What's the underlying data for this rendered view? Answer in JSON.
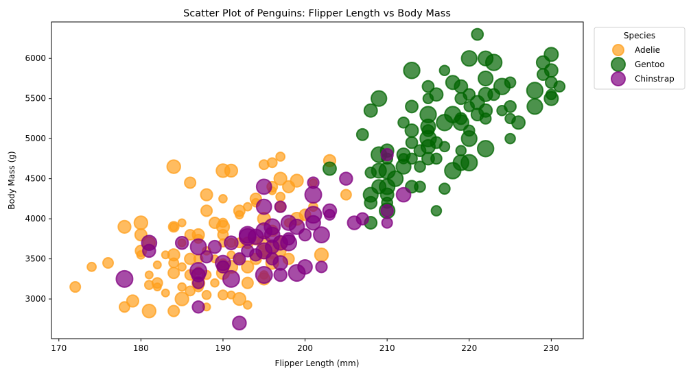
{
  "chart_data": {
    "type": "scatter",
    "title": "Scatter Plot of Penguins: Flipper Length vs Body Mass",
    "xlabel": "Flipper Length (mm)",
    "ylabel": "Body Mass (g)",
    "xlim": [
      169.1,
      233.9
    ],
    "ylim": [
      2505,
      6455
    ],
    "x_ticks": [
      170,
      180,
      190,
      200,
      210,
      220,
      230
    ],
    "y_ticks": [
      3000,
      3500,
      4000,
      4500,
      5000,
      5500,
      6000
    ],
    "grid": false,
    "legend": {
      "title": "Species",
      "placement": "outside-top-right"
    },
    "series": [
      {
        "name": "Adelie",
        "color": "#ff9f1c",
        "points": [
          [
            172,
            3150
          ],
          [
            174,
            3400
          ],
          [
            176,
            3450
          ],
          [
            178,
            3900
          ],
          [
            178,
            2900
          ],
          [
            179,
            2975
          ],
          [
            180,
            3950
          ],
          [
            180,
            3800
          ],
          [
            180,
            3600
          ],
          [
            180,
            3550
          ],
          [
            181,
            3700
          ],
          [
            181,
            3300
          ],
          [
            181,
            3175
          ],
          [
            181,
            2850
          ],
          [
            182,
            3425
          ],
          [
            182,
            3200
          ],
          [
            182,
            3150
          ],
          [
            183,
            3550
          ],
          [
            183,
            3075
          ],
          [
            184,
            4650
          ],
          [
            184,
            3900
          ],
          [
            184,
            3900
          ],
          [
            184,
            3550
          ],
          [
            184,
            3450
          ],
          [
            184,
            3325
          ],
          [
            184,
            2850
          ],
          [
            185,
            3950
          ],
          [
            185,
            3700
          ],
          [
            185,
            3400
          ],
          [
            185,
            3150
          ],
          [
            185,
            3000
          ],
          [
            186,
            4450
          ],
          [
            186,
            3800
          ],
          [
            186,
            3500
          ],
          [
            186,
            3300
          ],
          [
            186,
            3100
          ],
          [
            187,
            3800
          ],
          [
            187,
            3750
          ],
          [
            187,
            3500
          ],
          [
            187,
            3350
          ],
          [
            187,
            3200
          ],
          [
            187,
            3150
          ],
          [
            188,
            4300
          ],
          [
            188,
            4100
          ],
          [
            188,
            3600
          ],
          [
            188,
            3300
          ],
          [
            188,
            3050
          ],
          [
            188,
            2900
          ],
          [
            189,
            3950
          ],
          [
            189,
            3500
          ],
          [
            189,
            3200
          ],
          [
            190,
            4600
          ],
          [
            190,
            4250
          ],
          [
            190,
            3950
          ],
          [
            190,
            3900
          ],
          [
            190,
            3800
          ],
          [
            190,
            3700
          ],
          [
            190,
            3450
          ],
          [
            190,
            3400
          ],
          [
            190,
            3325
          ],
          [
            190,
            3050
          ],
          [
            191,
            4600
          ],
          [
            191,
            3700
          ],
          [
            191,
            3550
          ],
          [
            191,
            3400
          ],
          [
            191,
            3050
          ],
          [
            192,
            4100
          ],
          [
            192,
            4050
          ],
          [
            192,
            3700
          ],
          [
            192,
            3500
          ],
          [
            192,
            3000
          ],
          [
            193,
            4150
          ],
          [
            193,
            3700
          ],
          [
            193,
            3400
          ],
          [
            193,
            3200
          ],
          [
            193,
            2925
          ],
          [
            194,
            4250
          ],
          [
            194,
            4200
          ],
          [
            194,
            3725
          ],
          [
            194,
            3500
          ],
          [
            195,
            4675
          ],
          [
            195,
            4000
          ],
          [
            195,
            3700
          ],
          [
            195,
            3600
          ],
          [
            195,
            3550
          ],
          [
            195,
            3300
          ],
          [
            195,
            3250
          ],
          [
            196,
            4700
          ],
          [
            196,
            4400
          ],
          [
            196,
            4350
          ],
          [
            196,
            3850
          ],
          [
            196,
            3650
          ],
          [
            196,
            3550
          ],
          [
            196,
            3450
          ],
          [
            197,
            4775
          ],
          [
            197,
            4500
          ],
          [
            197,
            4275
          ],
          [
            197,
            4150
          ],
          [
            197,
            3700
          ],
          [
            197,
            3600
          ],
          [
            198,
            4400
          ],
          [
            198,
            3950
          ],
          [
            198,
            3500
          ],
          [
            199,
            4475
          ],
          [
            199,
            4000
          ],
          [
            200,
            4050
          ],
          [
            201,
            4150
          ],
          [
            201,
            4450
          ],
          [
            202,
            3550
          ],
          [
            203,
            4725
          ],
          [
            205,
            4300
          ]
        ]
      },
      {
        "name": "Gentoo",
        "color": "#006400",
        "points": [
          [
            203,
            4625
          ],
          [
            207,
            5050
          ],
          [
            208,
            5350
          ],
          [
            208,
            4575
          ],
          [
            208,
            4300
          ],
          [
            208,
            4200
          ],
          [
            208,
            3950
          ],
          [
            209,
            5500
          ],
          [
            209,
            4800
          ],
          [
            209,
            4600
          ],
          [
            209,
            4400
          ],
          [
            210,
            4850
          ],
          [
            210,
            4750
          ],
          [
            210,
            4600
          ],
          [
            210,
            4400
          ],
          [
            210,
            4300
          ],
          [
            210,
            4200
          ],
          [
            210,
            4100
          ],
          [
            211,
            4500
          ],
          [
            212,
            5200
          ],
          [
            212,
            4800
          ],
          [
            212,
            4750
          ],
          [
            212,
            4650
          ],
          [
            213,
            5850
          ],
          [
            213,
            5400
          ],
          [
            213,
            5100
          ],
          [
            213,
            4950
          ],
          [
            213,
            4750
          ],
          [
            213,
            4400
          ],
          [
            214,
            4850
          ],
          [
            214,
            4650
          ],
          [
            214,
            4400
          ],
          [
            215,
            5650
          ],
          [
            215,
            5500
          ],
          [
            215,
            5300
          ],
          [
            215,
            5150
          ],
          [
            215,
            5100
          ],
          [
            215,
            5000
          ],
          [
            215,
            4900
          ],
          [
            215,
            4750
          ],
          [
            216,
            5550
          ],
          [
            216,
            4950
          ],
          [
            216,
            4750
          ],
          [
            216,
            4100
          ],
          [
            217,
            5850
          ],
          [
            217,
            5200
          ],
          [
            217,
            4900
          ],
          [
            217,
            4375
          ],
          [
            218,
            5700
          ],
          [
            218,
            5300
          ],
          [
            218,
            4600
          ],
          [
            219,
            5650
          ],
          [
            219,
            5500
          ],
          [
            219,
            5250
          ],
          [
            219,
            5200
          ],
          [
            219,
            4850
          ],
          [
            219,
            4700
          ],
          [
            220,
            6000
          ],
          [
            220,
            5550
          ],
          [
            220,
            5400
          ],
          [
            220,
            5100
          ],
          [
            220,
            5000
          ],
          [
            220,
            4700
          ],
          [
            221,
            6300
          ],
          [
            221,
            5450
          ],
          [
            221,
            5300
          ],
          [
            222,
            6000
          ],
          [
            222,
            5750
          ],
          [
            222,
            5550
          ],
          [
            222,
            5350
          ],
          [
            222,
            5250
          ],
          [
            222,
            4875
          ],
          [
            223,
            5950
          ],
          [
            223,
            5550
          ],
          [
            224,
            5650
          ],
          [
            224,
            5350
          ],
          [
            225,
            5700
          ],
          [
            225,
            5400
          ],
          [
            225,
            5250
          ],
          [
            225,
            5000
          ],
          [
            226,
            5200
          ],
          [
            228,
            5600
          ],
          [
            228,
            5400
          ],
          [
            229,
            5950
          ],
          [
            229,
            5800
          ],
          [
            230,
            6050
          ],
          [
            230,
            5850
          ],
          [
            230,
            5700
          ],
          [
            230,
            5550
          ],
          [
            230,
            5500
          ],
          [
            231,
            5650
          ]
        ]
      },
      {
        "name": "Chinstrap",
        "color": "#800080",
        "points": [
          [
            178,
            3250
          ],
          [
            181,
            3700
          ],
          [
            181,
            3600
          ],
          [
            185,
            3700
          ],
          [
            187,
            3650
          ],
          [
            187,
            3350
          ],
          [
            187,
            3300
          ],
          [
            187,
            3200
          ],
          [
            187,
            2900
          ],
          [
            188,
            3525
          ],
          [
            189,
            3650
          ],
          [
            190,
            3450
          ],
          [
            190,
            3400
          ],
          [
            191,
            3700
          ],
          [
            191,
            3250
          ],
          [
            192,
            3500
          ],
          [
            192,
            2700
          ],
          [
            193,
            3800
          ],
          [
            193,
            3775
          ],
          [
            193,
            3600
          ],
          [
            194,
            3550
          ],
          [
            194,
            3775
          ],
          [
            195,
            4400
          ],
          [
            195,
            4150
          ],
          [
            195,
            3850
          ],
          [
            195,
            3600
          ],
          [
            195,
            3300
          ],
          [
            196,
            3800
          ],
          [
            196,
            3650
          ],
          [
            196,
            3500
          ],
          [
            196,
            3900
          ],
          [
            197,
            4150
          ],
          [
            197,
            3700
          ],
          [
            197,
            3450
          ],
          [
            197,
            3300
          ],
          [
            198,
            3750
          ],
          [
            198,
            3700
          ],
          [
            198,
            3950
          ],
          [
            199,
            3900
          ],
          [
            199,
            3325
          ],
          [
            200,
            3800
          ],
          [
            200,
            3400
          ],
          [
            201,
            4450
          ],
          [
            201,
            4300
          ],
          [
            201,
            4050
          ],
          [
            201,
            3950
          ],
          [
            202,
            3800
          ],
          [
            202,
            3400
          ],
          [
            203,
            4100
          ],
          [
            203,
            4050
          ],
          [
            205,
            4500
          ],
          [
            206,
            3950
          ],
          [
            207,
            4000
          ],
          [
            210,
            4800
          ],
          [
            210,
            4100
          ],
          [
            210,
            3950
          ],
          [
            212,
            4300
          ]
        ]
      }
    ]
  }
}
